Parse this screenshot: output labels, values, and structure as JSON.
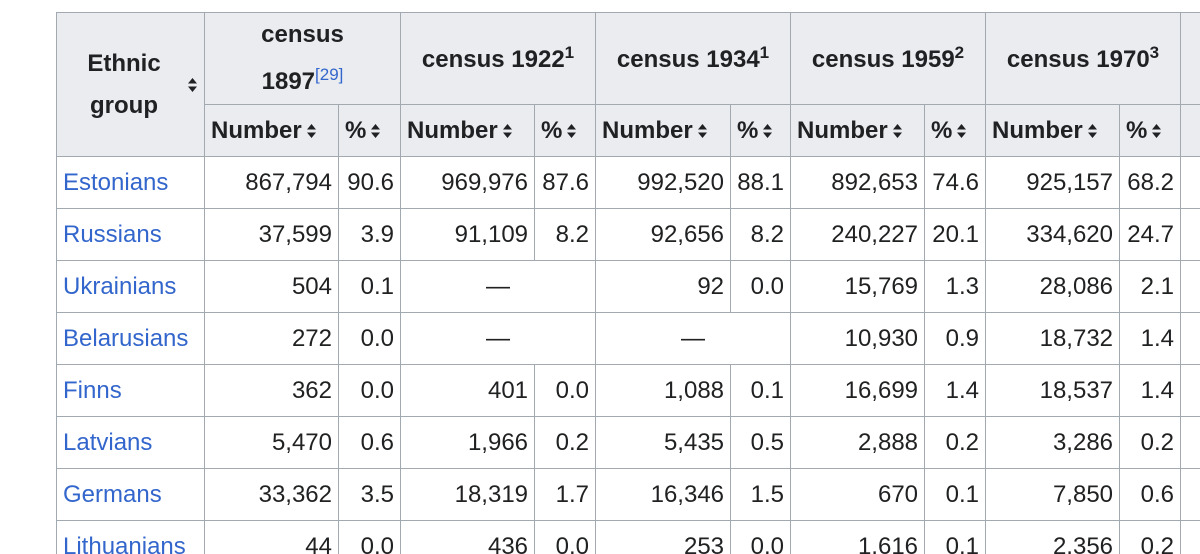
{
  "header": {
    "ethnic_group": "Ethnic group",
    "number": "Number",
    "percent": "%",
    "censuses": [
      {
        "title": "census 1897",
        "ref": "[29]"
      },
      {
        "title": "census 1922",
        "ref": "1"
      },
      {
        "title": "census 1934",
        "ref": "1"
      },
      {
        "title": "census 1959",
        "ref": "2"
      },
      {
        "title": "census 1970",
        "ref": "3"
      }
    ]
  },
  "table": {
    "rows": [
      {
        "name": "Estonians",
        "censuses": [
          [
            "867,794",
            "90.6"
          ],
          [
            "969,976",
            "87.6"
          ],
          [
            "992,520",
            "88.1"
          ],
          [
            "892,653",
            "74.6"
          ],
          [
            "925,157",
            "68.2"
          ]
        ]
      },
      {
        "name": "Russians",
        "censuses": [
          [
            "37,599",
            "3.9"
          ],
          [
            "91,109",
            "8.2"
          ],
          [
            "92,656",
            "8.2"
          ],
          [
            "240,227",
            "20.1"
          ],
          [
            "334,620",
            "24.7"
          ]
        ]
      },
      {
        "name": "Ukrainians",
        "censuses": [
          [
            "504",
            "0.1"
          ],
          [
            "—"
          ],
          [
            "92",
            "0.0"
          ],
          [
            "15,769",
            "1.3"
          ],
          [
            "28,086",
            "2.1"
          ]
        ]
      },
      {
        "name": "Belarusians",
        "censuses": [
          [
            "272",
            "0.0"
          ],
          [
            "—"
          ],
          [
            "—"
          ],
          [
            "10,930",
            "0.9"
          ],
          [
            "18,732",
            "1.4"
          ]
        ]
      },
      {
        "name": "Finns",
        "censuses": [
          [
            "362",
            "0.0"
          ],
          [
            "401",
            "0.0"
          ],
          [
            "1,088",
            "0.1"
          ],
          [
            "16,699",
            "1.4"
          ],
          [
            "18,537",
            "1.4"
          ]
        ]
      },
      {
        "name": "Latvians",
        "censuses": [
          [
            "5,470",
            "0.6"
          ],
          [
            "1,966",
            "0.2"
          ],
          [
            "5,435",
            "0.5"
          ],
          [
            "2,888",
            "0.2"
          ],
          [
            "3,286",
            "0.2"
          ]
        ]
      },
      {
        "name": "Germans",
        "censuses": [
          [
            "33,362",
            "3.5"
          ],
          [
            "18,319",
            "1.7"
          ],
          [
            "16,346",
            "1.5"
          ],
          [
            "670",
            "0.1"
          ],
          [
            "7,850",
            "0.6"
          ]
        ]
      },
      {
        "name": "Lithuanians",
        "censuses": [
          [
            "44",
            "0.0"
          ],
          [
            "436",
            "0.0"
          ],
          [
            "253",
            "0.0"
          ],
          [
            "1,616",
            "0.1"
          ],
          [
            "2,356",
            "0.2"
          ]
        ]
      }
    ]
  }
}
